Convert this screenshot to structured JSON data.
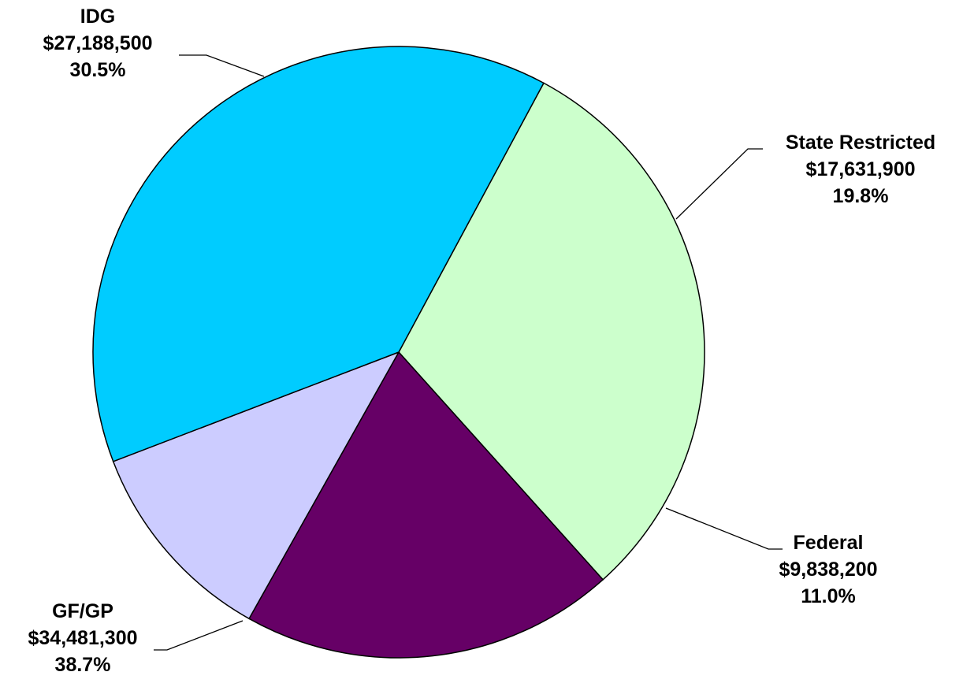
{
  "chart_data": {
    "type": "pie",
    "slices": [
      {
        "name": "IDG",
        "value": 27188500,
        "value_label": "$27,188,500",
        "percent_label": "30.5%",
        "color": "#CCFFCC"
      },
      {
        "name": "State Restricted",
        "value": 17631900,
        "value_label": "$17,631,900",
        "percent_label": "19.8%",
        "color": "#660066"
      },
      {
        "name": "Federal",
        "value": 9838200,
        "value_label": "$9,838,200",
        "percent_label": "11.0%",
        "color": "#CCCCFF"
      },
      {
        "name": "GF/GP",
        "value": 34481300,
        "value_label": "$34,481,300",
        "percent_label": "38.7%",
        "color": "#00CCFF"
      }
    ],
    "title": "",
    "legend": "none"
  }
}
